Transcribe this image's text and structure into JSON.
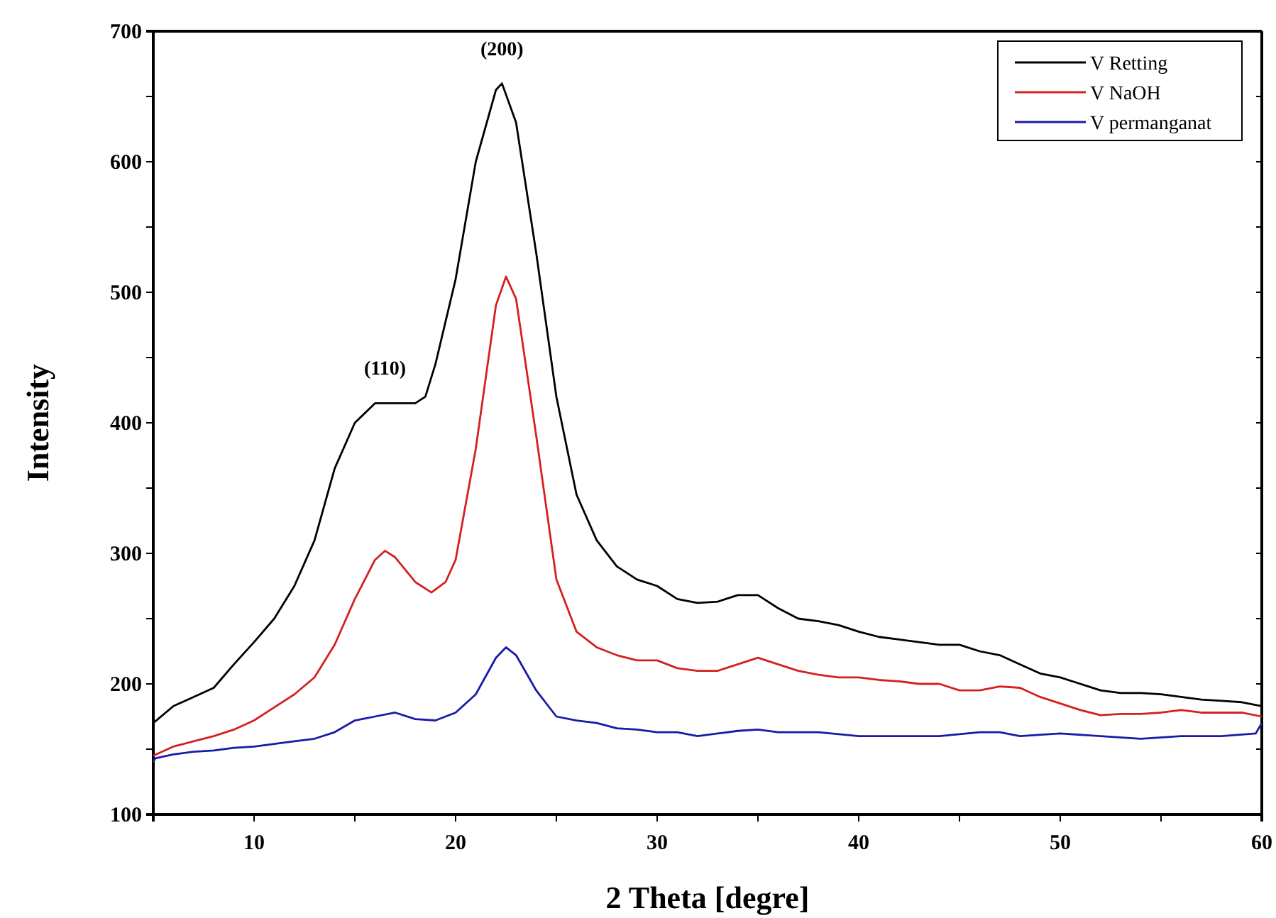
{
  "chart_data": {
    "type": "line",
    "xlabel": "2 Theta [degre]",
    "ylabel": "Intensity",
    "xlim": [
      5,
      60
    ],
    "xticks": [
      {
        "value": 5,
        "label": null
      },
      10,
      {
        "value": 15,
        "label": null
      },
      20,
      {
        "value": 25,
        "label": null
      },
      30,
      {
        "value": 35,
        "label": null
      },
      40,
      {
        "value": 45,
        "label": null
      },
      50,
      {
        "value": 55,
        "label": null
      },
      60
    ],
    "ylim": [
      100,
      700
    ],
    "yticks": [
      100,
      {
        "value": 150,
        "label": null
      },
      200,
      {
        "value": 250,
        "label": null
      },
      300,
      {
        "value": 350,
        "label": null
      },
      400,
      {
        "value": 450,
        "label": null
      },
      500,
      {
        "value": 550,
        "label": null
      },
      600,
      {
        "value": 650,
        "label": null
      },
      700
    ],
    "legend": "top right",
    "grid": false,
    "marker": "none",
    "line_style": "solid",
    "annotations": [
      {
        "text": "(110)",
        "x": 16.5,
        "y": 415
      },
      {
        "text": "(200)",
        "x": 22.3,
        "y": 660
      }
    ],
    "series": [
      {
        "name": "V Retting",
        "color": "#000000",
        "x": [
          5,
          6,
          7,
          8,
          9,
          10,
          11,
          12,
          13,
          14,
          15,
          16,
          17,
          18,
          18.5,
          19,
          20,
          21,
          22,
          22.3,
          23,
          24,
          25,
          26,
          27,
          28,
          29,
          30,
          31,
          32,
          33,
          34,
          35,
          36,
          37,
          38,
          39,
          40,
          41,
          42,
          43,
          44,
          45,
          46,
          47,
          48,
          49,
          50,
          51,
          52,
          53,
          54,
          55,
          56,
          57,
          58,
          59,
          60
        ],
        "values": [
          170,
          183,
          190,
          197,
          215,
          232,
          250,
          275,
          310,
          365,
          400,
          415,
          415,
          415,
          420,
          445,
          510,
          600,
          655,
          660,
          630,
          530,
          420,
          345,
          310,
          290,
          280,
          275,
          265,
          262,
          263,
          268,
          268,
          258,
          250,
          248,
          245,
          240,
          236,
          234,
          232,
          230,
          230,
          225,
          222,
          215,
          208,
          205,
          200,
          195,
          193,
          193,
          192,
          190,
          188,
          187,
          186,
          183
        ]
      },
      {
        "name": "V NaOH",
        "color": "#d42020",
        "x": [
          5,
          6,
          7,
          8,
          9,
          10,
          11,
          12,
          13,
          14,
          15,
          16,
          16.5,
          17,
          18,
          18.8,
          19.5,
          20,
          21,
          22,
          22.5,
          23,
          24,
          25,
          26,
          27,
          28,
          29,
          30,
          31,
          32,
          33,
          34,
          35,
          36,
          37,
          38,
          39,
          40,
          41,
          42,
          43,
          44,
          45,
          46,
          47,
          48,
          49,
          50,
          51,
          52,
          53,
          54,
          55,
          56,
          57,
          58,
          59,
          60
        ],
        "values": [
          145,
          152,
          156,
          160,
          165,
          172,
          182,
          192,
          205,
          230,
          265,
          295,
          302,
          297,
          278,
          270,
          278,
          295,
          380,
          490,
          512,
          495,
          390,
          280,
          240,
          228,
          222,
          218,
          218,
          212,
          210,
          210,
          215,
          220,
          215,
          210,
          207,
          205,
          205,
          203,
          202,
          200,
          200,
          195,
          195,
          198,
          197,
          190,
          185,
          180,
          176,
          177,
          177,
          178,
          180,
          178,
          178,
          178,
          175
        ]
      },
      {
        "name": "V permanganat",
        "color": "#1a1aa8",
        "x": [
          5,
          5.1,
          6,
          7,
          8,
          9,
          10,
          11,
          12,
          13,
          14,
          15,
          16,
          17,
          18,
          19,
          20,
          21,
          22,
          22.5,
          23,
          24,
          25,
          26,
          27,
          28,
          29,
          30,
          31,
          32,
          33,
          34,
          35,
          36,
          38,
          40,
          42,
          44,
          46,
          47,
          48,
          50,
          52,
          54,
          56,
          58,
          59.7,
          60
        ],
        "values": [
          140,
          143,
          146,
          148,
          149,
          151,
          152,
          154,
          156,
          158,
          163,
          172,
          175,
          178,
          173,
          172,
          178,
          192,
          220,
          228,
          222,
          195,
          175,
          172,
          170,
          166,
          165,
          163,
          163,
          160,
          162,
          164,
          165,
          163,
          163,
          160,
          160,
          160,
          163,
          163,
          160,
          162,
          160,
          158,
          160,
          160,
          162,
          170
        ]
      }
    ]
  }
}
